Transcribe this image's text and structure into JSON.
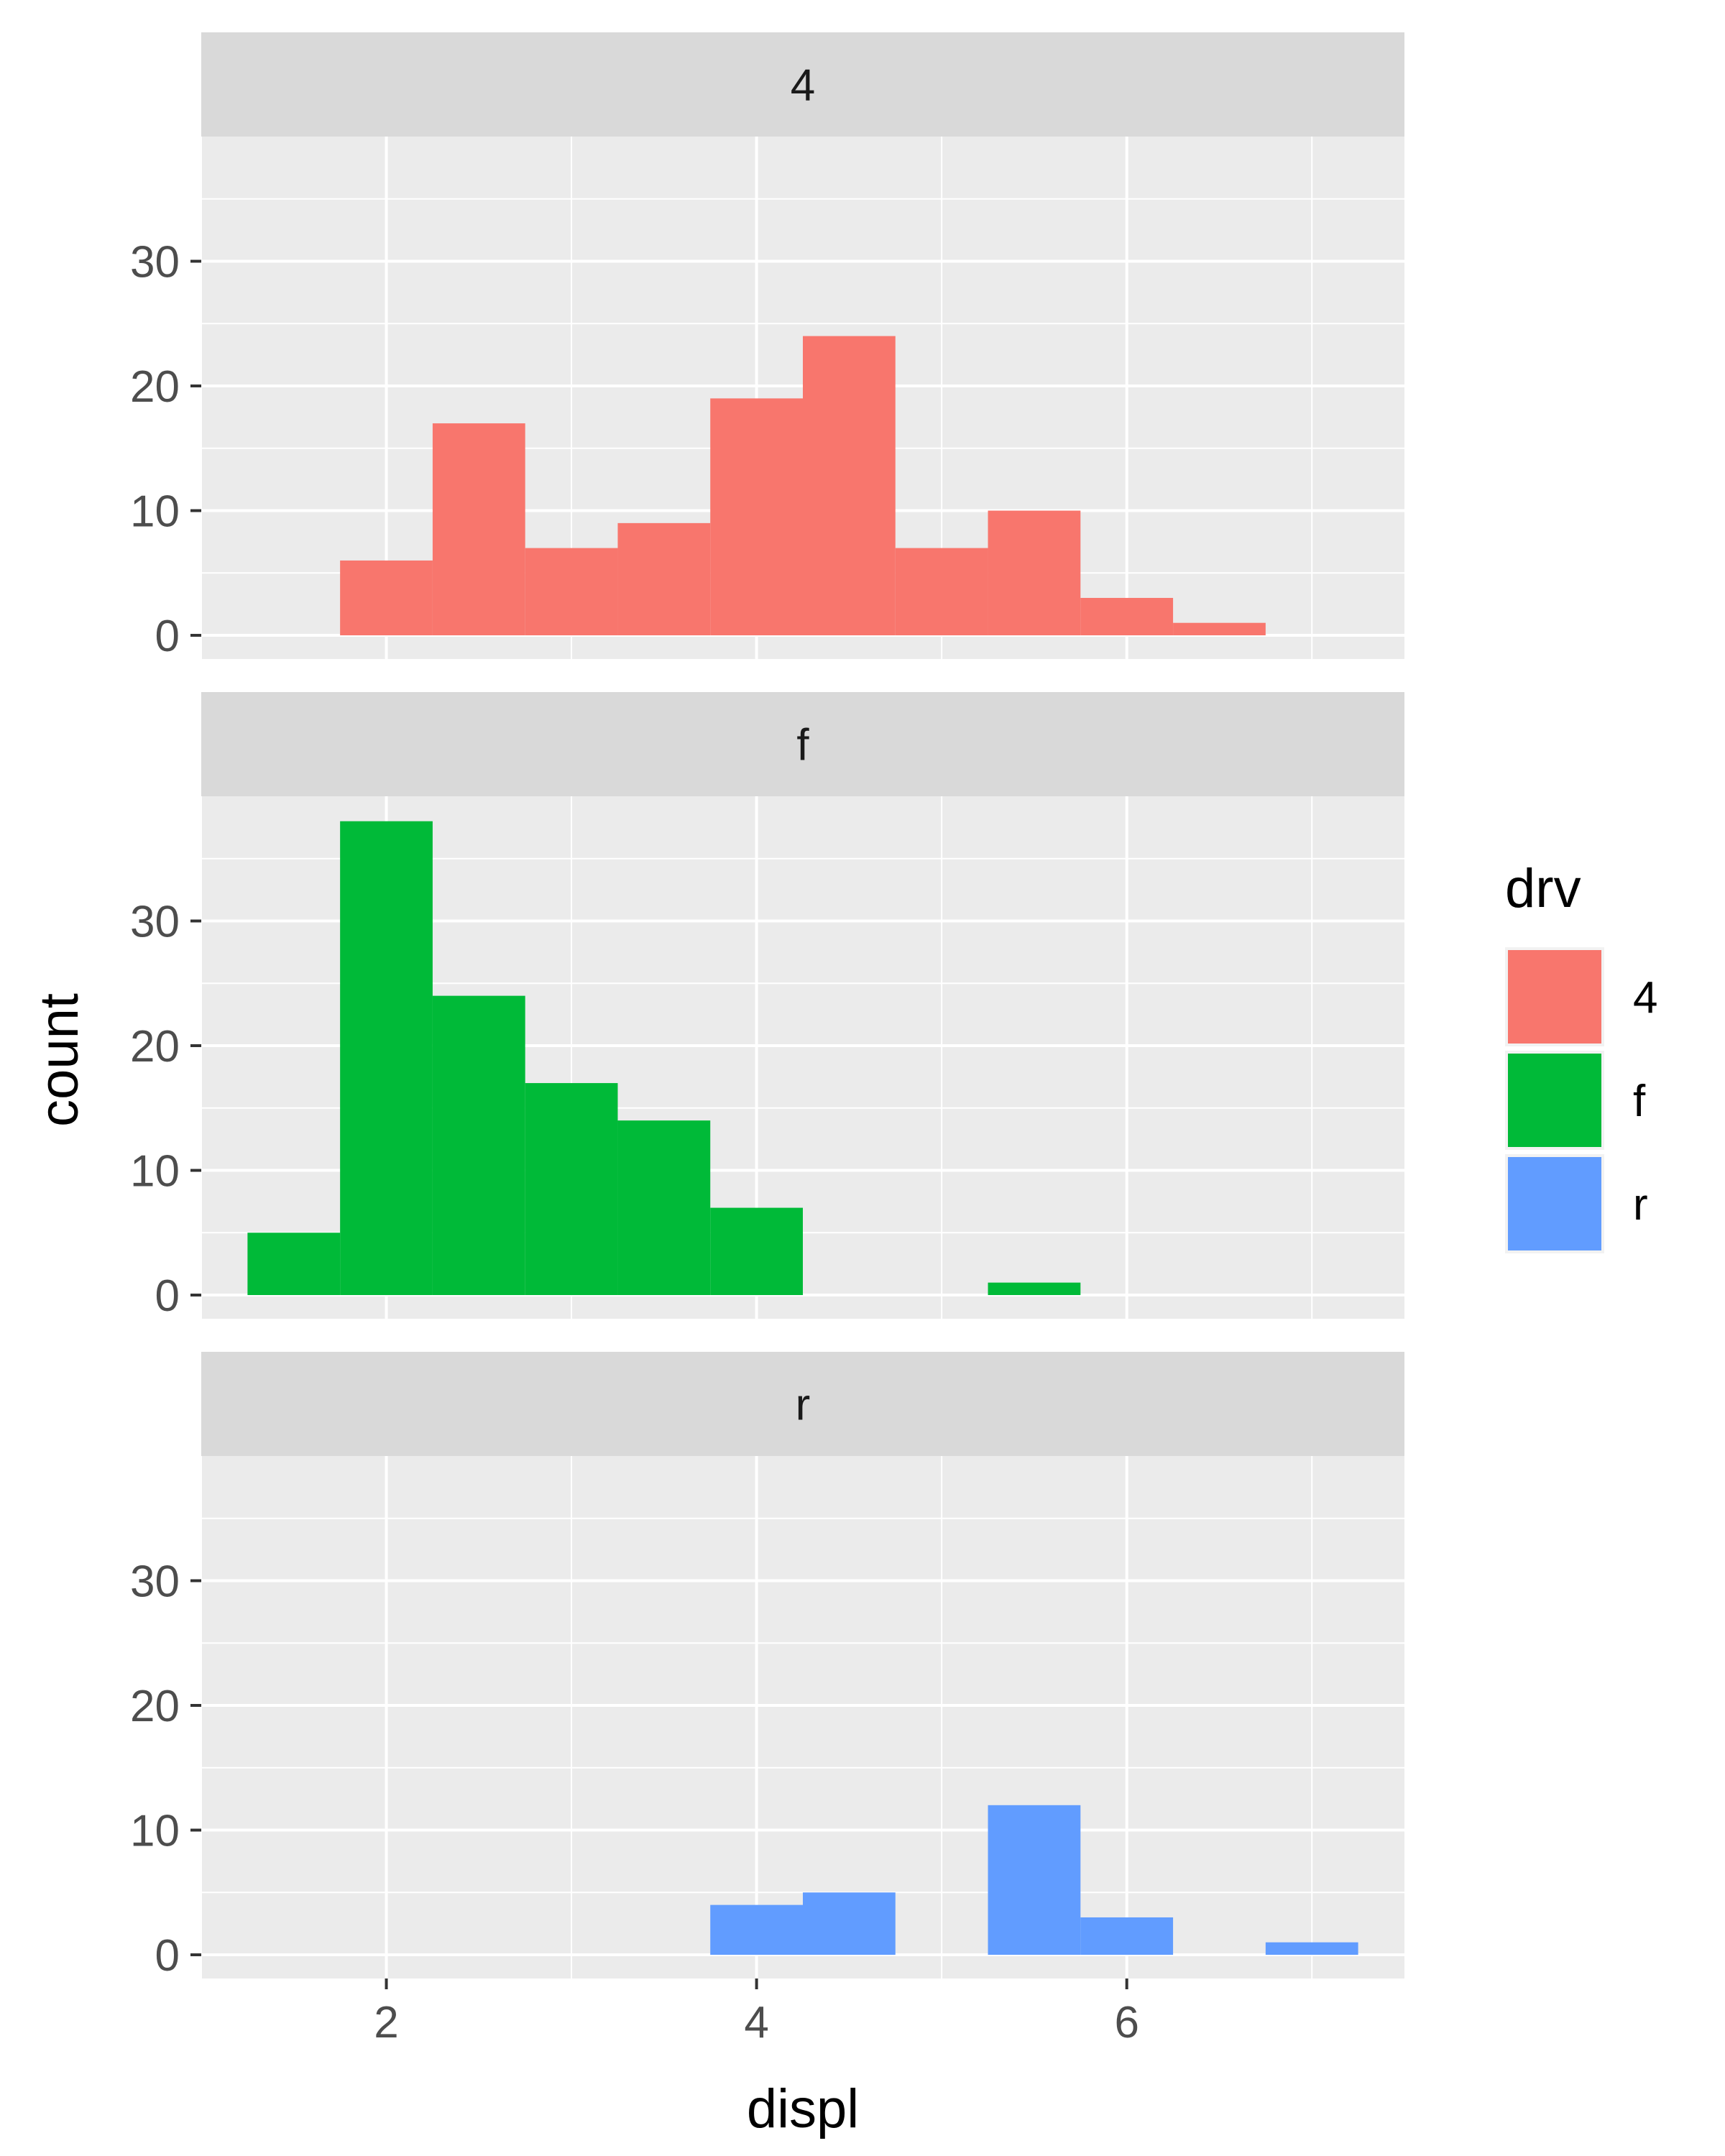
{
  "chart_data": {
    "type": "bar",
    "xlabel": "displ",
    "ylabel": "count",
    "xlim": [
      1.0,
      7.5
    ],
    "ylim": [
      -1.9,
      40
    ],
    "x_ticks": [
      2,
      4,
      6
    ],
    "x_ticks_label": [
      "2",
      "4",
      "6"
    ],
    "y_ticks": [
      0,
      10,
      20,
      30
    ],
    "y_ticks_label": [
      "0",
      "10",
      "20",
      "30"
    ],
    "grid": true,
    "bin_width": 0.5,
    "legend": {
      "title": "drv",
      "placement": "right",
      "entries": [
        {
          "label": "4",
          "color": "#F8766D"
        },
        {
          "label": "f",
          "color": "#00BA38"
        },
        {
          "label": "r",
          "color": "#619CFF"
        }
      ]
    },
    "facets": [
      {
        "label": "4",
        "color": "#F8766D",
        "bins": [
          {
            "x": 2.0,
            "count": 6
          },
          {
            "x": 2.5,
            "count": 17
          },
          {
            "x": 3.0,
            "count": 7
          },
          {
            "x": 3.5,
            "count": 9
          },
          {
            "x": 4.0,
            "count": 19
          },
          {
            "x": 4.5,
            "count": 24
          },
          {
            "x": 5.0,
            "count": 7
          },
          {
            "x": 5.5,
            "count": 10
          },
          {
            "x": 6.0,
            "count": 3
          },
          {
            "x": 6.5,
            "count": 1
          }
        ]
      },
      {
        "label": "f",
        "color": "#00BA38",
        "bins": [
          {
            "x": 1.5,
            "count": 5
          },
          {
            "x": 2.0,
            "count": 38
          },
          {
            "x": 2.5,
            "count": 24
          },
          {
            "x": 3.0,
            "count": 17
          },
          {
            "x": 3.5,
            "count": 14
          },
          {
            "x": 4.0,
            "count": 7
          },
          {
            "x": 5.5,
            "count": 1
          }
        ]
      },
      {
        "label": "r",
        "color": "#619CFF",
        "bins": [
          {
            "x": 4.0,
            "count": 4
          },
          {
            "x": 4.5,
            "count": 5
          },
          {
            "x": 5.5,
            "count": 12
          },
          {
            "x": 6.0,
            "count": 3
          },
          {
            "x": 7.0,
            "count": 1
          }
        ]
      }
    ]
  }
}
